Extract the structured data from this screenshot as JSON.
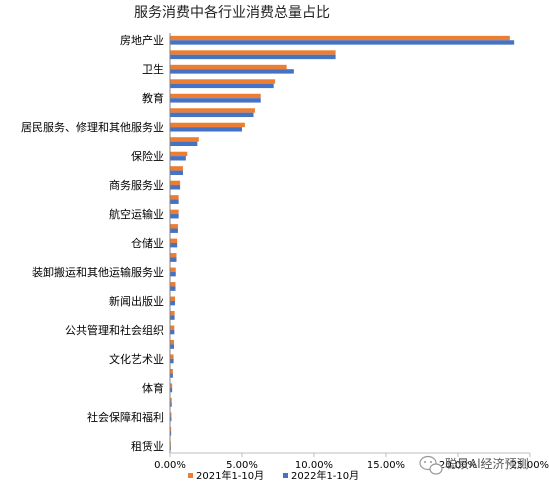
{
  "chart_data": {
    "type": "bar",
    "orientation": "horizontal",
    "title": "服务消费中各行业消费总量占比",
    "categories": [
      "房地产业",
      "",
      "卫生",
      "",
      "教育",
      "",
      "居民服务、修理和其他服务业",
      "",
      "保险业",
      "",
      "商务服务业",
      "",
      "航空运输业",
      "",
      "仓储业",
      "",
      "装卸搬运和其他运输服务业",
      "",
      "新闻出版业",
      "",
      "公共管理和社会组织",
      "",
      "文化艺术业",
      "",
      "体育",
      "",
      "社会保障和福利",
      "",
      "租赁业"
    ],
    "series": [
      {
        "name": "2021年1-10月",
        "color": "#ED7D31",
        "values": [
          23.6,
          11.5,
          8.1,
          7.3,
          6.3,
          5.9,
          5.2,
          2.0,
          1.2,
          0.9,
          0.7,
          0.6,
          0.6,
          0.55,
          0.5,
          0.45,
          0.4,
          0.38,
          0.35,
          0.32,
          0.3,
          0.28,
          0.25,
          0.2,
          0.15,
          0.12,
          0.1,
          0.08,
          0.06
        ]
      },
      {
        "name": "2022年1-10月",
        "color": "#4472C4",
        "values": [
          23.9,
          11.5,
          8.6,
          7.2,
          6.3,
          5.8,
          5.0,
          1.9,
          1.1,
          0.9,
          0.7,
          0.6,
          0.6,
          0.55,
          0.5,
          0.45,
          0.4,
          0.38,
          0.35,
          0.32,
          0.3,
          0.28,
          0.25,
          0.2,
          0.15,
          0.12,
          0.1,
          0.08,
          0.06
        ]
      }
    ],
    "xlim": [
      0,
      25
    ],
    "xticks": [
      "0.00%",
      "5.00%",
      "10.00%",
      "15.00%",
      "20.00%",
      "25.00%"
    ],
    "legend_position": "bottom",
    "grid": false
  },
  "watermark": {
    "text": "聪景Al经济预测",
    "icon": "wechat-icon"
  }
}
